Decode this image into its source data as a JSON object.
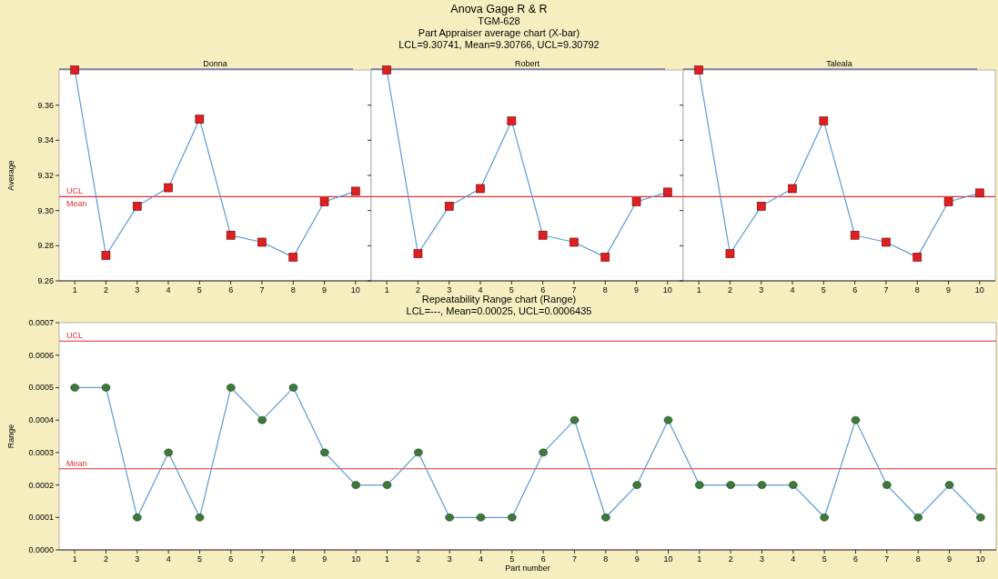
{
  "chart_data": [
    {
      "type": "other",
      "title": "Anova Gage R & R",
      "subtitle": "TGM-628",
      "annotations": [
        "Part Appraiser average chart (X-bar)",
        "LCL=9.30741, Mean=9.30766, UCL=9.30792"
      ]
    },
    {
      "type": "line",
      "title": "Donna",
      "ylabel": "Average",
      "categories": [
        "1",
        "2",
        "3",
        "4",
        "5",
        "6",
        "7",
        "8",
        "9",
        "10"
      ],
      "series": [
        {
          "color": "#5b9bd5",
          "values": [
            9.38,
            9.2745,
            9.3025,
            9.313,
            9.352,
            9.286,
            9.282,
            9.2735,
            9.305,
            9.311
          ],
          "colors": [
            "#e02020",
            "#e02020",
            "#e02020",
            "#e02020",
            "#e02020",
            "#e02020",
            "#e02020",
            "#e02020",
            "#e02020",
            "#e02020"
          ]
        }
      ],
      "ylim": [
        9.26,
        9.38
      ],
      "yticks": [
        {
          "value": 9.26,
          "label": "9.26"
        },
        {
          "value": 9.28,
          "label": "9.28"
        },
        {
          "value": 9.3,
          "label": "9.30"
        },
        {
          "value": 9.32,
          "label": "9.32"
        },
        {
          "value": 9.34,
          "label": "9.34"
        },
        {
          "value": 9.36,
          "label": "9.36"
        }
      ],
      "ref_lines": [
        {
          "axis": "y",
          "value": 9.30792,
          "label": "UCL",
          "color": "#e03030"
        }
      ],
      "annotations": [
        {
          "text": "Mean",
          "y": 9.30766
        }
      ],
      "marker": "square",
      "grid": false
    },
    {
      "type": "line",
      "title": "Robert",
      "categories": [
        "1",
        "2",
        "3",
        "4",
        "5",
        "6",
        "7",
        "8",
        "9",
        "10"
      ],
      "series": [
        {
          "color": "#5b9bd5",
          "values": [
            9.38,
            9.2755,
            9.3025,
            9.3125,
            9.351,
            9.286,
            9.282,
            9.2735,
            9.305,
            9.3105
          ],
          "colors": [
            "#e02020",
            "#e02020",
            "#e02020",
            "#e02020",
            "#e02020",
            "#e02020",
            "#e02020",
            "#e02020",
            "#e02020",
            "#e02020"
          ]
        }
      ],
      "ylim": [
        9.26,
        9.38
      ],
      "yticks": [
        9.26,
        9.28,
        9.3,
        9.32,
        9.34,
        9.36
      ],
      "ref_lines": [
        {
          "axis": "y",
          "value": 9.30792,
          "color": "#e03030"
        }
      ],
      "tick_labels": "x",
      "marker": "square",
      "grid": false
    },
    {
      "type": "line",
      "title": "Taleala",
      "categories": [
        "1",
        "2",
        "3",
        "4",
        "5",
        "6",
        "7",
        "8",
        "9",
        "10"
      ],
      "series": [
        {
          "color": "#5b9bd5",
          "values": [
            9.38,
            9.2755,
            9.3025,
            9.3125,
            9.351,
            9.286,
            9.282,
            9.2735,
            9.305,
            9.31
          ],
          "colors": [
            "#e02020",
            "#e02020",
            "#e02020",
            "#e02020",
            "#e02020",
            "#e02020",
            "#e02020",
            "#e02020",
            "#e02020",
            "#e02020"
          ]
        }
      ],
      "ylim": [
        9.26,
        9.38
      ],
      "yticks": [
        9.26,
        9.28,
        9.3,
        9.32,
        9.34,
        9.36
      ],
      "ref_lines": [
        {
          "axis": "y",
          "value": 9.30792,
          "color": "#e03030"
        }
      ],
      "tick_labels": "x",
      "marker": "square",
      "grid": false
    },
    {
      "type": "line",
      "title": "Repeatability Range chart (Range)",
      "subtitle": "LCL=---, Mean=0.00025, UCL=0.0006435",
      "xlabel": "Part number",
      "ylabel": "Range",
      "categories": [
        "1",
        "2",
        "3",
        "4",
        "5",
        "6",
        "7",
        "8",
        "9",
        "10",
        "1",
        "2",
        "3",
        "4",
        "5",
        "6",
        "7",
        "8",
        "9",
        "10",
        "1",
        "2",
        "3",
        "4",
        "5",
        "6",
        "7",
        "8",
        "9",
        "10"
      ],
      "series": [
        {
          "color": "#5b9bd5",
          "values": [
            0.0005,
            0.0005,
            0.0001,
            0.0003,
            0.0001,
            0.0005,
            0.0004,
            0.0005,
            0.0003,
            0.0002,
            0.0002,
            0.0003,
            0.0001,
            0.0001,
            0.0001,
            0.0003,
            0.0004,
            0.0001,
            0.0002,
            0.0004,
            0.0002,
            0.0002,
            0.0002,
            0.0002,
            0.0001,
            0.0004,
            0.0002,
            0.0001,
            0.0002,
            0.0001
          ],
          "colors": [
            "#3d7a3a",
            "#3d7a3a",
            "#3d7a3a",
            "#3d7a3a",
            "#3d7a3a",
            "#3d7a3a",
            "#3d7a3a",
            "#3d7a3a",
            "#3d7a3a",
            "#3d7a3a",
            "#3d7a3a",
            "#3d7a3a",
            "#3d7a3a",
            "#3d7a3a",
            "#3d7a3a",
            "#3d7a3a",
            "#3d7a3a",
            "#3d7a3a",
            "#3d7a3a",
            "#3d7a3a",
            "#3d7a3a",
            "#3d7a3a",
            "#3d7a3a",
            "#3d7a3a",
            "#3d7a3a",
            "#3d7a3a",
            "#3d7a3a",
            "#3d7a3a",
            "#3d7a3a",
            "#3d7a3a"
          ]
        }
      ],
      "ylim": [
        0,
        0.0007
      ],
      "yticks": [
        {
          "value": 0,
          "label": "0.0000"
        },
        {
          "value": 0.0001,
          "label": "0.0001"
        },
        {
          "value": 0.0002,
          "label": "0.0002"
        },
        {
          "value": 0.0003,
          "label": "0.0003"
        },
        {
          "value": 0.0004,
          "label": "0.0004"
        },
        {
          "value": 0.0005,
          "label": "0.0005"
        },
        {
          "value": 0.0006,
          "label": "0.0006"
        },
        {
          "value": 0.0007,
          "label": "0.0007"
        }
      ],
      "ref_lines": [
        {
          "axis": "y",
          "value": 0.0006435,
          "label": "UCL",
          "color": "#e03030"
        },
        {
          "axis": "y",
          "value": 0.00025,
          "label": "Mean",
          "color": "#e03030"
        }
      ],
      "marker": "circle",
      "grid": false
    }
  ]
}
